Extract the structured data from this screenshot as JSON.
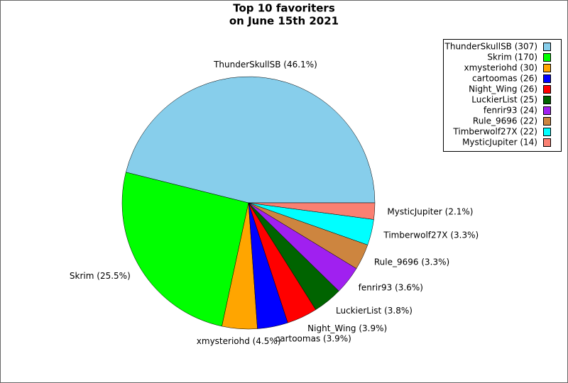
{
  "chart_data": {
    "type": "pie",
    "title": [
      "Top 10 favoriters",
      "on June 15th 2021"
    ],
    "categories": [
      "ThunderSkullSB",
      "Skrim",
      "xmysteriohd",
      "cartoomas",
      "Night_Wing",
      "LuckierList",
      "fenrir93",
      "Rule_9696",
      "Timberwolf27X",
      "MysticJupiter"
    ],
    "values": [
      307,
      170,
      30,
      26,
      26,
      25,
      24,
      22,
      22,
      14
    ],
    "value_labels": [
      "ThunderSkullSB (46.1%)",
      "Skrim (25.5%)",
      "xmysteriohd (4.5%)",
      "cartoomas (3.9%)",
      "Night_Wing (3.9%)",
      "LuckierList (3.8%)",
      "fenrir93 (3.6%)",
      "Rule_9696 (3.3%)",
      "Timberwolf27X (3.3%)",
      "MysticJupiter (2.1%)"
    ],
    "legend_labels": [
      "ThunderSkullSB (307)",
      "Skrim (170)",
      "xmysteriohd (30)",
      "cartoomas (26)",
      "Night_Wing (26)",
      "LuckierList (25)",
      "fenrir93 (24)",
      "Rule_9696 (22)",
      "Timberwolf27X (22)",
      "MysticJupiter (14)"
    ],
    "colors": [
      "#87ceeb",
      "#00ff00",
      "#ffa500",
      "#0000ff",
      "#ff0000",
      "#006400",
      "#a020f0",
      "#cd853f",
      "#00ffff",
      "#fa8072"
    ],
    "legend": "upper right"
  }
}
